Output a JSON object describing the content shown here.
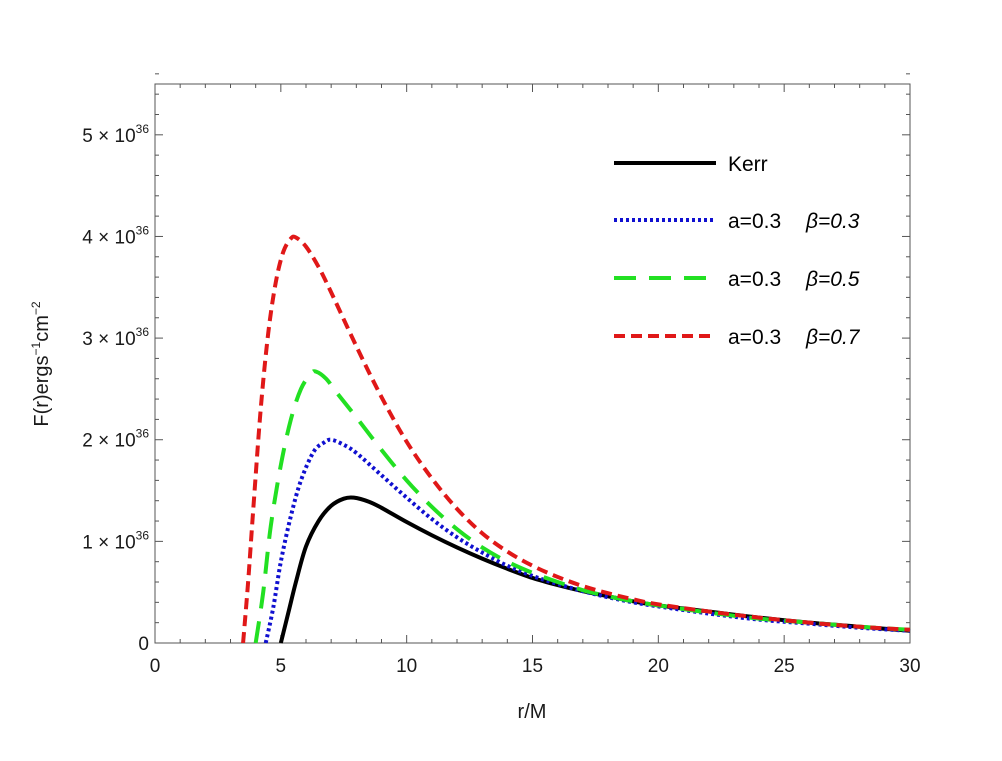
{
  "chart_data": {
    "type": "line",
    "title": "",
    "xlabel": "r/M",
    "ylabel": "F(r)ergs",
    "ylabel_exp1": "−1",
    "ylabel_unit": "cm",
    "ylabel_exp2": "−2",
    "xlim": [
      0,
      30
    ],
    "ylim": [
      0,
      5.5
    ],
    "x_ticks": [
      {
        "value": 0,
        "label": "0"
      },
      {
        "value": 5,
        "label": "5"
      },
      {
        "value": 10,
        "label": "10"
      },
      {
        "value": 15,
        "label": "15"
      },
      {
        "value": 20,
        "label": "20"
      },
      {
        "value": 25,
        "label": "25"
      },
      {
        "value": 30,
        "label": "30"
      }
    ],
    "y_ticks": [
      {
        "value": 0,
        "coef": "0",
        "exp": ""
      },
      {
        "value": 1,
        "coef": "1 × 10",
        "exp": "36"
      },
      {
        "value": 2,
        "coef": "2 × 10",
        "exp": "36"
      },
      {
        "value": 3,
        "coef": "3 × 10",
        "exp": "36"
      },
      {
        "value": 4,
        "coef": "4 × 10",
        "exp": "36"
      },
      {
        "value": 5,
        "coef": "5 × 10",
        "exp": "36"
      }
    ],
    "y_unit_note": "y values in units of 10^36",
    "legend_position": "top-right",
    "series": [
      {
        "name": "Kerr",
        "label": "Kerr",
        "color": "#000000",
        "style": "solid",
        "x": [
          5.0,
          5.3,
          5.6,
          6.0,
          6.5,
          7.0,
          7.5,
          7.9,
          8.5,
          9.0,
          10,
          11,
          12,
          13,
          14,
          15,
          16,
          17,
          18,
          19,
          20,
          22,
          24,
          26,
          28,
          30
        ],
        "values": [
          0,
          0.3,
          0.6,
          0.95,
          1.2,
          1.35,
          1.42,
          1.43,
          1.39,
          1.33,
          1.19,
          1.06,
          0.94,
          0.83,
          0.73,
          0.64,
          0.57,
          0.51,
          0.46,
          0.41,
          0.37,
          0.31,
          0.25,
          0.2,
          0.16,
          0.12
        ]
      },
      {
        "name": "a=0.3 β=0.3",
        "label_a": "a=0.3",
        "label_b": "β=0.3",
        "color": "#1010d0",
        "style": "dotted",
        "x": [
          4.4,
          4.7,
          5.0,
          5.4,
          5.8,
          6.3,
          6.7,
          7.0,
          7.5,
          8.0,
          9.0,
          10,
          11,
          12,
          13,
          14,
          15,
          16,
          17,
          18,
          19,
          20,
          22,
          24,
          26,
          28,
          30
        ],
        "values": [
          0,
          0.35,
          0.8,
          1.25,
          1.6,
          1.88,
          1.97,
          2.0,
          1.95,
          1.87,
          1.65,
          1.43,
          1.22,
          1.04,
          0.89,
          0.76,
          0.66,
          0.58,
          0.51,
          0.45,
          0.4,
          0.36,
          0.29,
          0.23,
          0.19,
          0.15,
          0.12
        ]
      },
      {
        "name": "a=0.3 β=0.5",
        "label_a": "a=0.3",
        "label_b": "β=0.5",
        "color": "#22e022",
        "style": "long-dash",
        "x": [
          4.0,
          4.3,
          4.6,
          5.0,
          5.4,
          5.8,
          6.2,
          6.4,
          6.8,
          7.2,
          8.0,
          9.0,
          10,
          11,
          12,
          13,
          14,
          15,
          16,
          17,
          18,
          19,
          20,
          22,
          24,
          26,
          28,
          30
        ],
        "values": [
          0,
          0.5,
          1.15,
          1.75,
          2.2,
          2.5,
          2.65,
          2.67,
          2.6,
          2.47,
          2.22,
          1.9,
          1.6,
          1.34,
          1.12,
          0.94,
          0.8,
          0.69,
          0.6,
          0.52,
          0.46,
          0.41,
          0.37,
          0.3,
          0.24,
          0.2,
          0.16,
          0.13
        ]
      },
      {
        "name": "a=0.3 β=0.7",
        "label_a": "a=0.3",
        "label_b": "β=0.7",
        "color": "#e01818",
        "style": "dashed",
        "x": [
          3.5,
          3.7,
          3.9,
          4.2,
          4.5,
          4.8,
          5.1,
          5.4,
          5.6,
          6.0,
          6.5,
          7.0,
          8.0,
          9.0,
          10,
          11,
          12,
          13,
          14,
          15,
          16,
          17,
          18,
          19,
          20,
          22,
          24,
          26,
          28,
          30
        ],
        "values": [
          0,
          0.6,
          1.3,
          2.3,
          3.05,
          3.55,
          3.85,
          3.98,
          3.99,
          3.9,
          3.7,
          3.45,
          2.92,
          2.42,
          1.98,
          1.62,
          1.32,
          1.08,
          0.9,
          0.76,
          0.65,
          0.56,
          0.49,
          0.43,
          0.38,
          0.31,
          0.25,
          0.2,
          0.16,
          0.13
        ]
      }
    ]
  }
}
